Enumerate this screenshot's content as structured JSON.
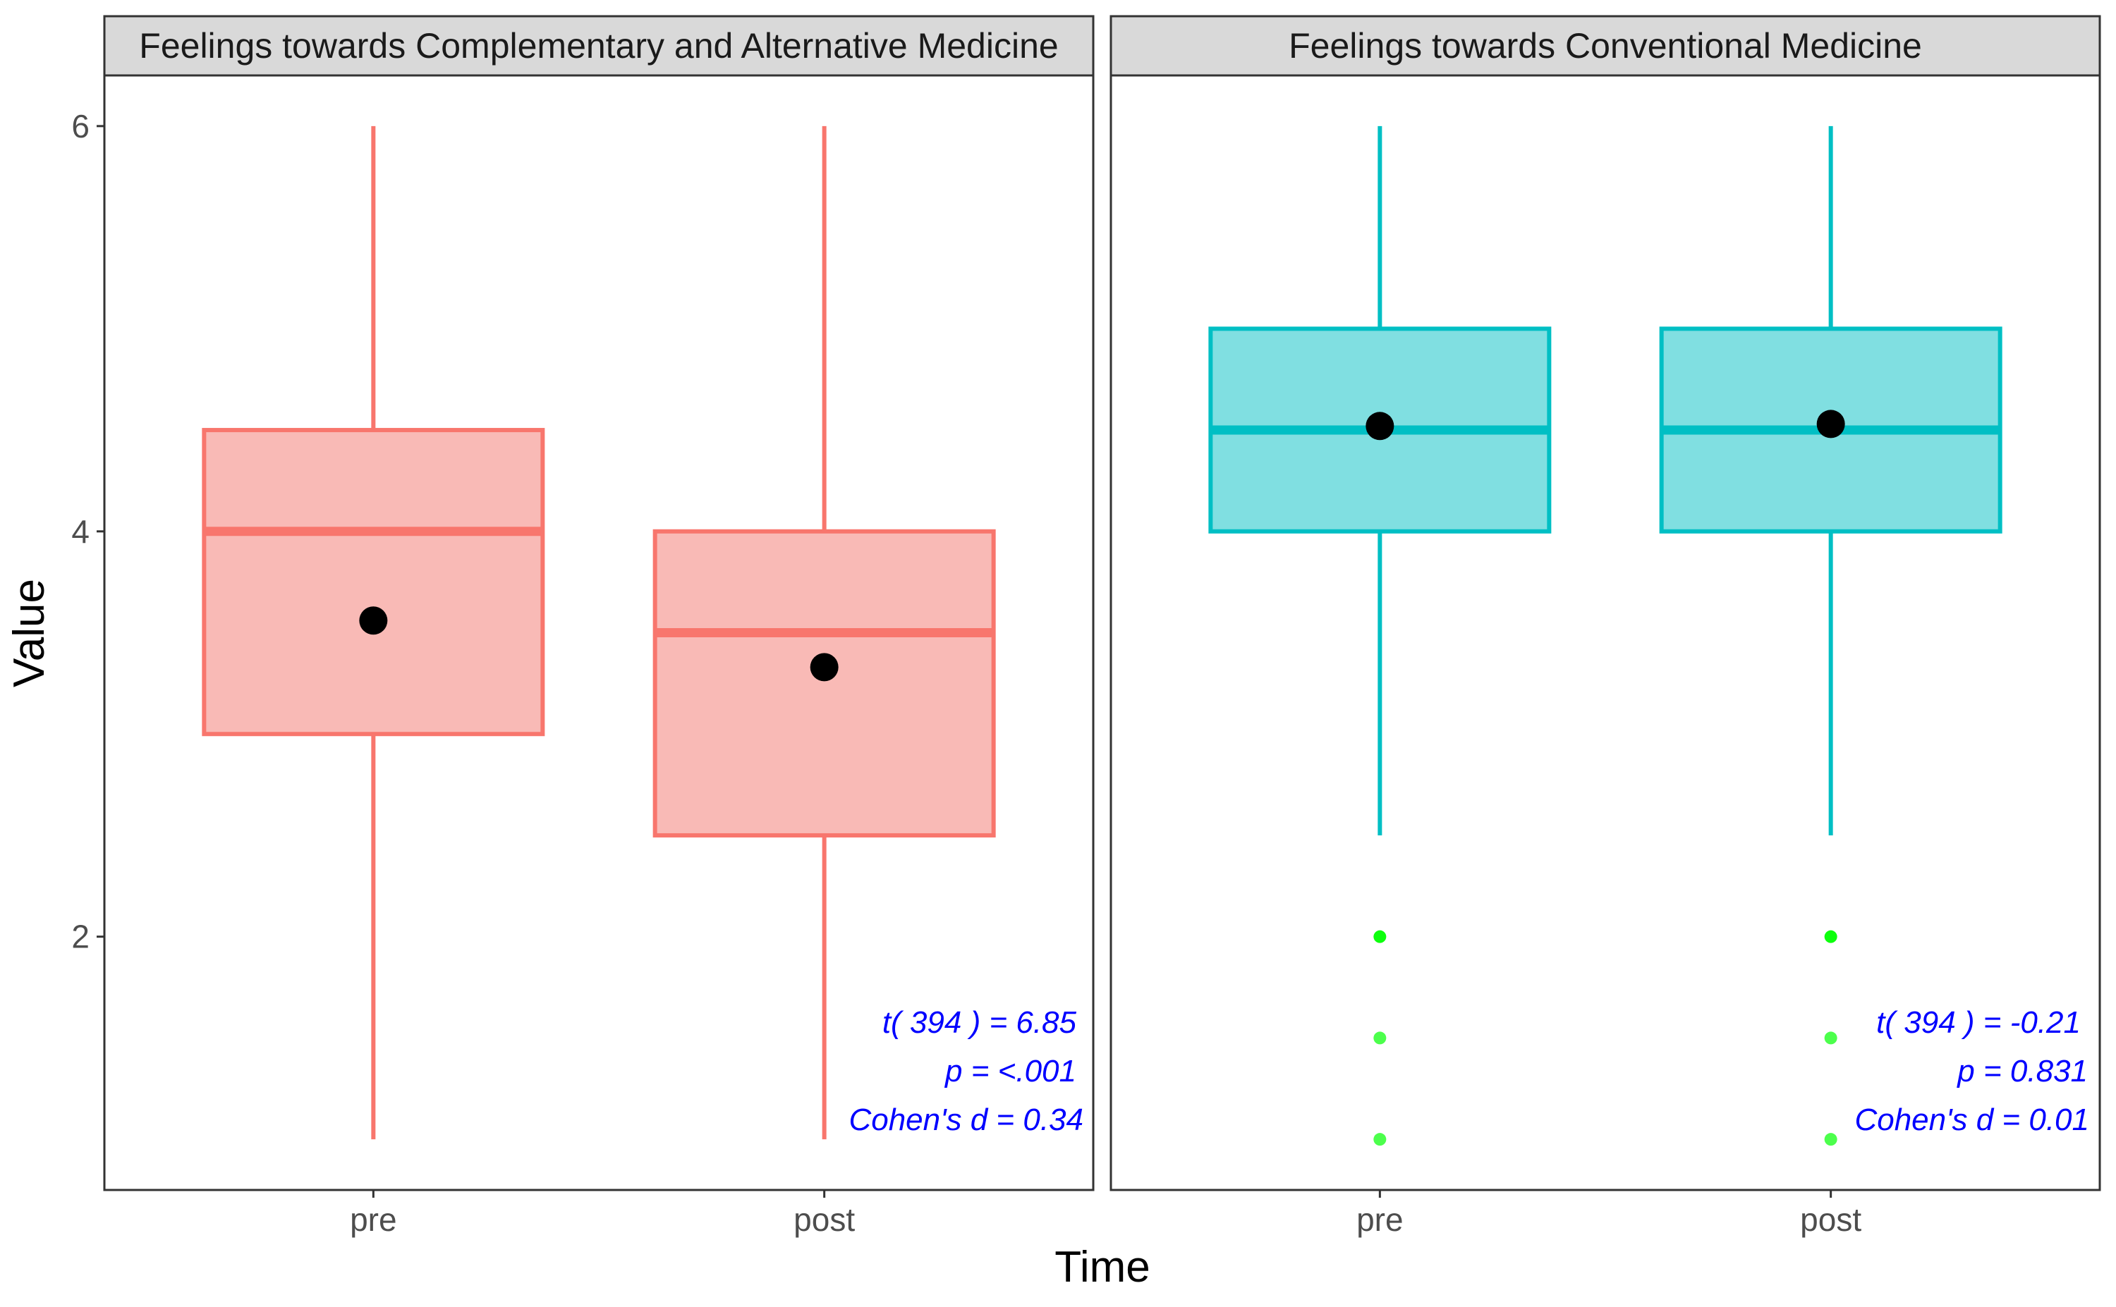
{
  "chart_data": {
    "type": "boxplot",
    "xlabel": "Time",
    "ylabel": "Value",
    "ylim": [
      0.75,
      6.25
    ],
    "y_ticks": [
      2,
      4,
      6
    ],
    "categories": [
      "pre",
      "post"
    ],
    "grid": false,
    "colors": {
      "cam_line": "#F8766D",
      "cam_fill": "#F9BAB6",
      "conv_line": "#00BFC4",
      "conv_fill": "#80DFE1",
      "mean_point": "#000000",
      "outlier": "#00FF00",
      "stat_text": "#0000FF"
    },
    "panels": [
      {
        "strip": "Feelings towards Complementary and Alternative Medicine",
        "series_color": "cam",
        "boxes": [
          {
            "category": "pre",
            "whisker_low": 1.0,
            "q1": 3.0,
            "median": 4.0,
            "q3": 4.5,
            "whisker_high": 6.0,
            "mean": 3.56,
            "outliers": []
          },
          {
            "category": "post",
            "whisker_low": 1.0,
            "q1": 2.5,
            "median": 3.5,
            "q3": 4.0,
            "whisker_high": 6.0,
            "mean": 3.33,
            "outliers": []
          }
        ],
        "stats": [
          "t( 394 ) =  6.85",
          "p = <.001",
          "Cohen's d = 0.34"
        ]
      },
      {
        "strip": "Feelings towards Conventional Medicine",
        "series_color": "conv",
        "boxes": [
          {
            "category": "pre",
            "whisker_low": 2.5,
            "q1": 4.0,
            "median": 4.5,
            "q3": 5.0,
            "whisker_high": 6.0,
            "mean": 4.52,
            "outliers": [
              2.0,
              1.5,
              1.0
            ]
          },
          {
            "category": "post",
            "whisker_low": 2.5,
            "q1": 4.0,
            "median": 4.5,
            "q3": 5.0,
            "whisker_high": 6.0,
            "mean": 4.53,
            "outliers": [
              2.0,
              1.5,
              1.0
            ]
          }
        ],
        "stats": [
          "t( 394 ) =  -0.21",
          "p = 0.831",
          "Cohen's d = 0.01"
        ]
      }
    ]
  }
}
